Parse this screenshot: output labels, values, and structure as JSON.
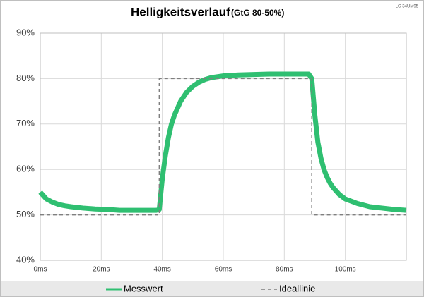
{
  "chart_data": {
    "type": "line",
    "title": "Helligkeitsverlauf",
    "subtitle": "(GtG 80-50%)",
    "note": "LG 34UM95",
    "xlim": [
      0,
      120
    ],
    "xticks": [
      {
        "value": 0,
        "label": "0ms"
      },
      {
        "value": 20,
        "label": "20ms"
      },
      {
        "value": 40,
        "label": "40ms"
      },
      {
        "value": 60,
        "label": "60ms"
      },
      {
        "value": 80,
        "label": "80ms"
      },
      {
        "value": 100,
        "label": "100ms"
      }
    ],
    "ylim": [
      40,
      90
    ],
    "yticks": [
      {
        "value": 40,
        "label": "40%"
      },
      {
        "value": 50,
        "label": "50%"
      },
      {
        "value": 60,
        "label": "60%"
      },
      {
        "value": 70,
        "label": "70%"
      },
      {
        "value": 80,
        "label": "80%"
      },
      {
        "value": 90,
        "label": "90%"
      }
    ],
    "grid": true,
    "legend": "bottom",
    "series": [
      {
        "name": "Messwert",
        "color": "#2fbf71",
        "dash": false,
        "x": [
          0,
          2,
          4,
          6,
          8,
          10,
          14,
          18,
          22,
          26,
          30,
          34,
          38,
          39,
          40,
          41,
          42,
          43,
          44,
          45,
          46,
          48,
          50,
          52,
          54,
          56,
          60,
          65,
          70,
          75,
          80,
          85,
          88,
          89,
          90,
          91,
          92,
          93,
          94,
          95,
          96,
          98,
          100,
          104,
          108,
          112,
          116,
          120
        ],
        "values": [
          55,
          53.5,
          52.8,
          52.3,
          52,
          51.8,
          51.5,
          51.3,
          51.2,
          51,
          51,
          51,
          51,
          51.2,
          58,
          63,
          67,
          70,
          72,
          73.5,
          75,
          77,
          78.3,
          79.2,
          79.8,
          80.2,
          80.6,
          80.8,
          80.9,
          81,
          81,
          81,
          81,
          80,
          72,
          66,
          62.5,
          60,
          58.3,
          57,
          56,
          54.5,
          53.5,
          52.5,
          51.8,
          51.5,
          51.2,
          51
        ]
      },
      {
        "name": "Ideallinie",
        "color": "#7f7f7f",
        "dash": true,
        "x": [
          0,
          39,
          39,
          89,
          89,
          120
        ],
        "values": [
          50,
          50,
          80,
          80,
          50,
          50
        ]
      }
    ]
  }
}
